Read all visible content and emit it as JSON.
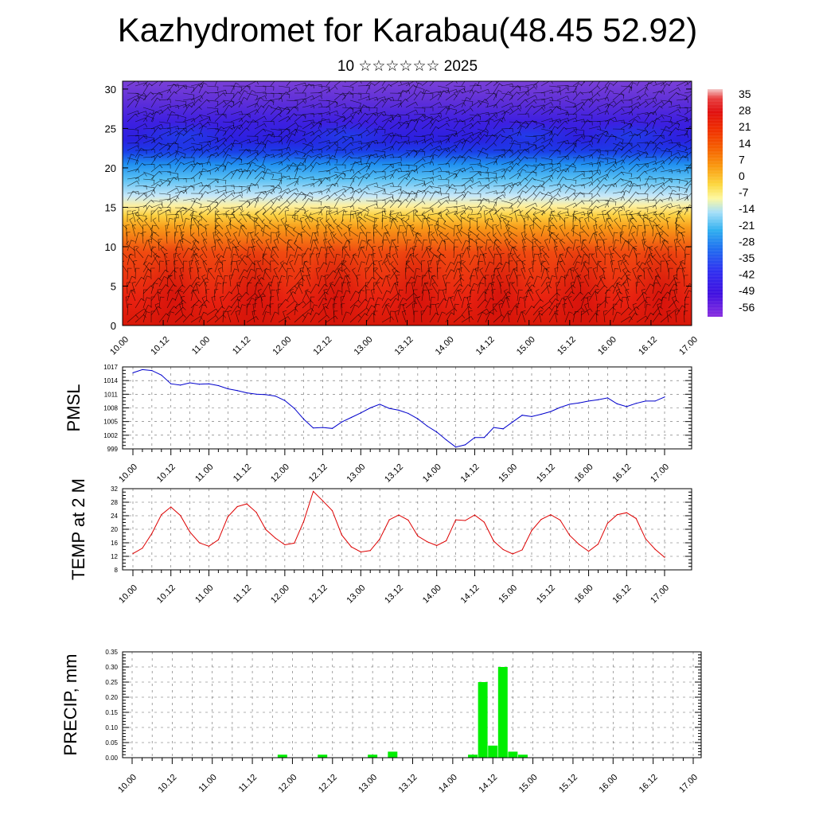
{
  "header": {
    "title": "Kazhydromet for Karabau(48.45 52.92)",
    "subtitle": "10 ☆☆☆☆☆☆ 2025"
  },
  "time_labels": [
    "10.00",
    "10.12",
    "11.00",
    "11.12",
    "12.00",
    "12.12",
    "13.00",
    "13.12",
    "14.00",
    "14.12",
    "15.00",
    "15.12",
    "16.00",
    "16.12",
    "17.00"
  ],
  "chart_data": [
    {
      "type": "heatmap",
      "id": "cross-section",
      "title": "",
      "xlabel": "",
      "ylabel": "",
      "x_ticks": [
        "10.00",
        "10.12",
        "11.00",
        "11.12",
        "12.00",
        "12.12",
        "13.00",
        "13.12",
        "14.00",
        "14.12",
        "15.00",
        "15.12",
        "16.00",
        "16.12",
        "17.00"
      ],
      "y_ticks": [
        0,
        5,
        10,
        15,
        20,
        25,
        30
      ],
      "ylim": [
        0,
        31
      ],
      "colorbar": {
        "labels": [
          "35",
          "28",
          "21",
          "14",
          "7",
          "0",
          "-7",
          "-14",
          "-21",
          "-28",
          "-35",
          "-42",
          "-49",
          "-56"
        ],
        "colors": [
          "#f4c8c8",
          "#e82020",
          "#e01010",
          "#f03000",
          "#f56000",
          "#fa9a10",
          "#fcd840",
          "#fdf8a0",
          "#a8e0f8",
          "#30b0f0",
          "#2070f0",
          "#3030f0",
          "#4010e0",
          "#7030d0"
        ]
      },
      "wind_barbs": true
    },
    {
      "type": "line",
      "id": "pmsl",
      "ylabel": "PMSL",
      "y_ticks": [
        999,
        1002,
        1005,
        1008,
        1011,
        1014,
        1017
      ],
      "ylim": [
        999,
        1017
      ],
      "x": [
        "10.00",
        "10.03",
        "10.06",
        "10.09",
        "10.12",
        "10.15",
        "10.18",
        "10.21",
        "11.00",
        "11.03",
        "11.06",
        "11.09",
        "11.12",
        "11.15",
        "11.18",
        "11.21",
        "12.00",
        "12.03",
        "12.06",
        "12.09",
        "12.12",
        "12.15",
        "12.18",
        "12.21",
        "13.00",
        "13.03",
        "13.06",
        "13.09",
        "13.12",
        "13.15",
        "13.18",
        "13.21",
        "14.00",
        "14.03",
        "14.06",
        "14.09",
        "14.12",
        "14.15",
        "14.18",
        "14.21",
        "15.00",
        "15.03",
        "15.06",
        "15.09",
        "15.12",
        "15.15",
        "15.18",
        "15.21",
        "16.00",
        "16.03",
        "16.06",
        "16.09",
        "16.12",
        "16.15",
        "16.18",
        "16.21",
        "17.00"
      ],
      "series": [
        {
          "color": "#0000cc",
          "values": [
            1015.7,
            1016.4,
            1016.2,
            1015.2,
            1013.3,
            1013.0,
            1013.5,
            1013.2,
            1013.3,
            1012.9,
            1012.2,
            1011.8,
            1011.3,
            1011.0,
            1010.9,
            1010.6,
            1009.6,
            1007.9,
            1005.5,
            1003.6,
            1003.7,
            1003.5,
            1004.9,
            1005.9,
            1006.9,
            1008.0,
            1008.8,
            1007.9,
            1007.5,
            1006.8,
            1005.6,
            1004.0,
            1002.7,
            1001.0,
            999.4,
            999.9,
            1001.5,
            1001.5,
            1003.7,
            1003.4,
            1004.9,
            1006.4,
            1006.1,
            1006.6,
            1007.2,
            1008.1,
            1008.8,
            1009.1,
            1009.5,
            1009.8,
            1010.2,
            1008.9,
            1008.3,
            1009.0,
            1009.5,
            1009.5,
            1010.4
          ]
        }
      ]
    },
    {
      "type": "line",
      "id": "temp2m",
      "ylabel": "TEMP at 2 M",
      "y_ticks": [
        8,
        12,
        16,
        20,
        24,
        28,
        32
      ],
      "ylim": [
        8,
        32
      ],
      "x": [
        "10.00",
        "10.03",
        "10.06",
        "10.09",
        "10.12",
        "10.15",
        "10.18",
        "10.21",
        "11.00",
        "11.03",
        "11.06",
        "11.09",
        "11.12",
        "11.15",
        "11.18",
        "11.21",
        "12.00",
        "12.03",
        "12.06",
        "12.09",
        "12.12",
        "12.15",
        "12.18",
        "12.21",
        "13.00",
        "13.03",
        "13.06",
        "13.09",
        "13.12",
        "13.15",
        "13.18",
        "13.21",
        "14.00",
        "14.03",
        "14.06",
        "14.09",
        "14.12",
        "14.15",
        "14.18",
        "14.21",
        "15.00",
        "15.03",
        "15.06",
        "15.09",
        "15.12",
        "15.15",
        "15.18",
        "15.21",
        "16.00",
        "16.03",
        "16.06",
        "16.09",
        "16.12",
        "16.15",
        "16.18",
        "16.21",
        "17.00"
      ],
      "series": [
        {
          "color": "#dd0000",
          "values": [
            12.8,
            14.4,
            18.8,
            24.3,
            26.6,
            24.1,
            19.2,
            16.0,
            15.0,
            16.9,
            23.7,
            26.7,
            27.5,
            25.0,
            19.9,
            17.4,
            15.4,
            15.9,
            22.4,
            31.2,
            28.4,
            25.5,
            18.3,
            14.8,
            13.3,
            13.7,
            17.1,
            22.8,
            24.2,
            22.7,
            18.0,
            16.3,
            15.2,
            16.6,
            22.8,
            22.6,
            24.2,
            22.1,
            16.5,
            14.0,
            12.7,
            13.9,
            19.6,
            22.9,
            24.3,
            22.7,
            18.2,
            15.5,
            13.5,
            15.6,
            21.8,
            24.3,
            24.9,
            23.2,
            17.2,
            14.1,
            11.7
          ]
        }
      ]
    },
    {
      "type": "bar",
      "id": "precip",
      "ylabel": "PRECIP, mm",
      "y_ticks": [
        "0.00",
        "0.05",
        "0.10",
        "0.15",
        "0.20",
        "0.25",
        "0.30",
        "0.35"
      ],
      "ylim": [
        0,
        0.35
      ],
      "bars": [
        {
          "x": "11.21",
          "value": 0.01
        },
        {
          "x": "12.09",
          "value": 0.01
        },
        {
          "x": "13.00",
          "value": 0.01
        },
        {
          "x": "13.06",
          "value": 0.02
        },
        {
          "x": "14.06",
          "value": 0.01
        },
        {
          "x": "14.09",
          "value": 0.25
        },
        {
          "x": "14.12",
          "value": 0.04
        },
        {
          "x": "14.15",
          "value": 0.3
        },
        {
          "x": "14.18",
          "value": 0.02
        },
        {
          "x": "14.21",
          "value": 0.01
        }
      ],
      "bar_color": "#00ee00"
    }
  ]
}
